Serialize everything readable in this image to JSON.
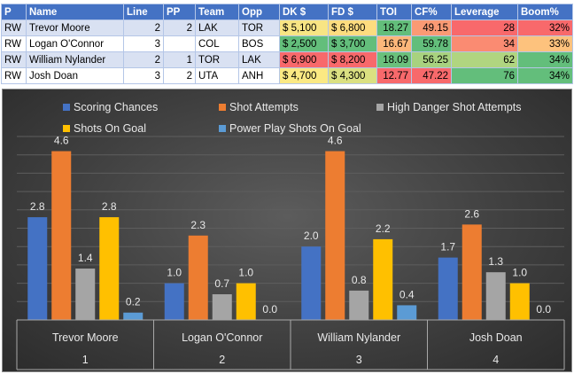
{
  "table": {
    "headers": [
      "P",
      "Name",
      "Line",
      "PP",
      "Team",
      "Opp",
      "DK $",
      "FD $",
      "TOI",
      "CF%",
      "Leverage",
      "Boom%"
    ],
    "rows": [
      {
        "P": "RW",
        "Name": "Trevor Moore",
        "Line": "2",
        "PP": "2",
        "Team": "LAK",
        "Opp": "TOR",
        "DK": "$ 5,100",
        "FD": "$ 6,800",
        "TOI": "18.27",
        "CF": "49.15",
        "Leverage": "28",
        "Boom": "32%"
      },
      {
        "P": "RW",
        "Name": "Logan O'Connor",
        "Line": "3",
        "PP": "",
        "Team": "COL",
        "Opp": "BOS",
        "DK": "$ 2,500",
        "FD": "$ 3,700",
        "TOI": "16.67",
        "CF": "59.78",
        "Leverage": "34",
        "Boom": "33%"
      },
      {
        "P": "RW",
        "Name": "William Nylander",
        "Line": "2",
        "PP": "1",
        "Team": "TOR",
        "Opp": "LAK",
        "DK": "$ 6,900",
        "FD": "$ 8,200",
        "TOI": "18.09",
        "CF": "56.25",
        "Leverage": "62",
        "Boom": "34%"
      },
      {
        "P": "RW",
        "Name": "Josh Doan",
        "Line": "3",
        "PP": "2",
        "Team": "UTA",
        "Opp": "ANH",
        "DK": "$ 4,700",
        "FD": "$ 4,300",
        "TOI": "12.77",
        "CF": "47.22",
        "Leverage": "76",
        "Boom": "34%"
      }
    ],
    "cell_colors": {
      "DK": [
        "#f8e584",
        "#63be7b",
        "#f8696b",
        "#fbe983"
      ],
      "FD": [
        "#fddc7f",
        "#63be7b",
        "#f8696b",
        "#dbe081"
      ],
      "TOI": [
        "#63be7b",
        "#fcb77a",
        "#6ac07c",
        "#f8696b"
      ],
      "CF": [
        "#fa9a74",
        "#63be7b",
        "#a8d27f",
        "#f8696b"
      ],
      "Leverage": [
        "#f8696b",
        "#fa8b72",
        "#b0d580",
        "#63be7b"
      ],
      "Boom": [
        "#f8696b",
        "#fdc27d",
        "#63be7b",
        "#63be7b"
      ]
    }
  },
  "chart_data": {
    "type": "bar",
    "categories": [
      "Trevor Moore",
      "Logan O'Connor",
      "William Nylander",
      "Josh Doan"
    ],
    "category_index": [
      "1",
      "2",
      "3",
      "4"
    ],
    "series": [
      {
        "name": "Scoring Chances",
        "color": "#4472c4",
        "values": [
          2.8,
          1.0,
          2.0,
          1.7
        ]
      },
      {
        "name": "Shot Attempts",
        "color": "#ed7d31",
        "values": [
          4.6,
          2.3,
          4.6,
          2.6
        ]
      },
      {
        "name": "High Danger Shot Attempts",
        "color": "#a5a5a5",
        "values": [
          1.4,
          0.7,
          0.8,
          1.3
        ]
      },
      {
        "name": "Shots On Goal",
        "color": "#ffc000",
        "values": [
          2.8,
          1.0,
          2.2,
          1.0
        ]
      },
      {
        "name": "Power Play Shots On Goal",
        "color": "#5b9bd5",
        "values": [
          0.2,
          0.0,
          0.4,
          0.0
        ]
      }
    ],
    "ylim": [
      0,
      5
    ],
    "grid": true,
    "legend": "top",
    "data_labels": true
  }
}
